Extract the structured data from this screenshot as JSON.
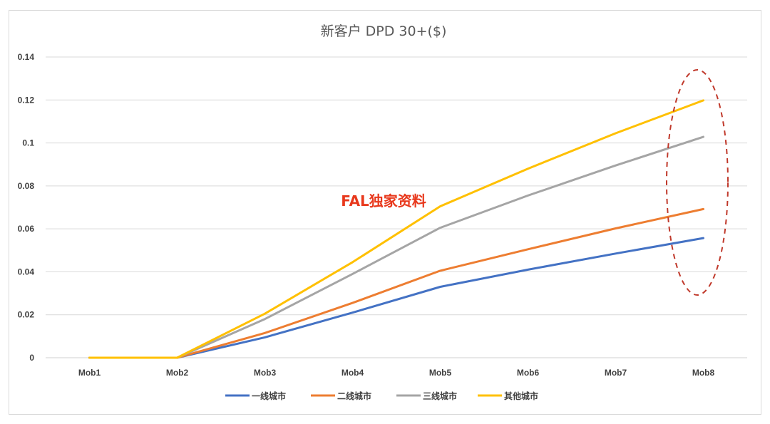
{
  "watermark": "FAL独家资料",
  "chart_data": {
    "type": "line",
    "title": "新客户 DPD 30+($)",
    "categories": [
      "Mob1",
      "Mob2",
      "Mob3",
      "Mob4",
      "Mob5",
      "Mob6",
      "Mob7",
      "Mob8"
    ],
    "ylim": [
      0,
      0.14
    ],
    "yticks": [
      0,
      0.02,
      0.04,
      0.06,
      0.08,
      0.1,
      0.12,
      0.14
    ],
    "ytick_labels": [
      "0",
      "0.02",
      "0.04",
      "0.06",
      "0.08",
      "0.1",
      "0.12",
      "0.14"
    ],
    "grid": true,
    "legend": "bottom",
    "series": [
      {
        "name": "一线城市",
        "color": "#4472c4",
        "values": [
          0,
          0,
          0.0095,
          0.021,
          0.033,
          0.041,
          0.0485,
          0.0557
        ]
      },
      {
        "name": "二线城市",
        "color": "#ed7d31",
        "values": [
          0,
          0,
          0.0115,
          0.0255,
          0.0405,
          0.0505,
          0.0602,
          0.0692
        ]
      },
      {
        "name": "三线城市",
        "color": "#a5a5a5",
        "values": [
          0,
          0,
          0.018,
          0.039,
          0.0605,
          0.0755,
          0.0895,
          0.1028
        ]
      },
      {
        "name": "其他城市",
        "color": "#ffc000",
        "values": [
          0,
          0,
          0.0205,
          0.0445,
          0.0705,
          0.088,
          0.1045,
          0.1198
        ]
      }
    ],
    "annotation": {
      "shape": "dashed-ellipse",
      "color": "#c0392b",
      "target": "Mob8"
    }
  }
}
